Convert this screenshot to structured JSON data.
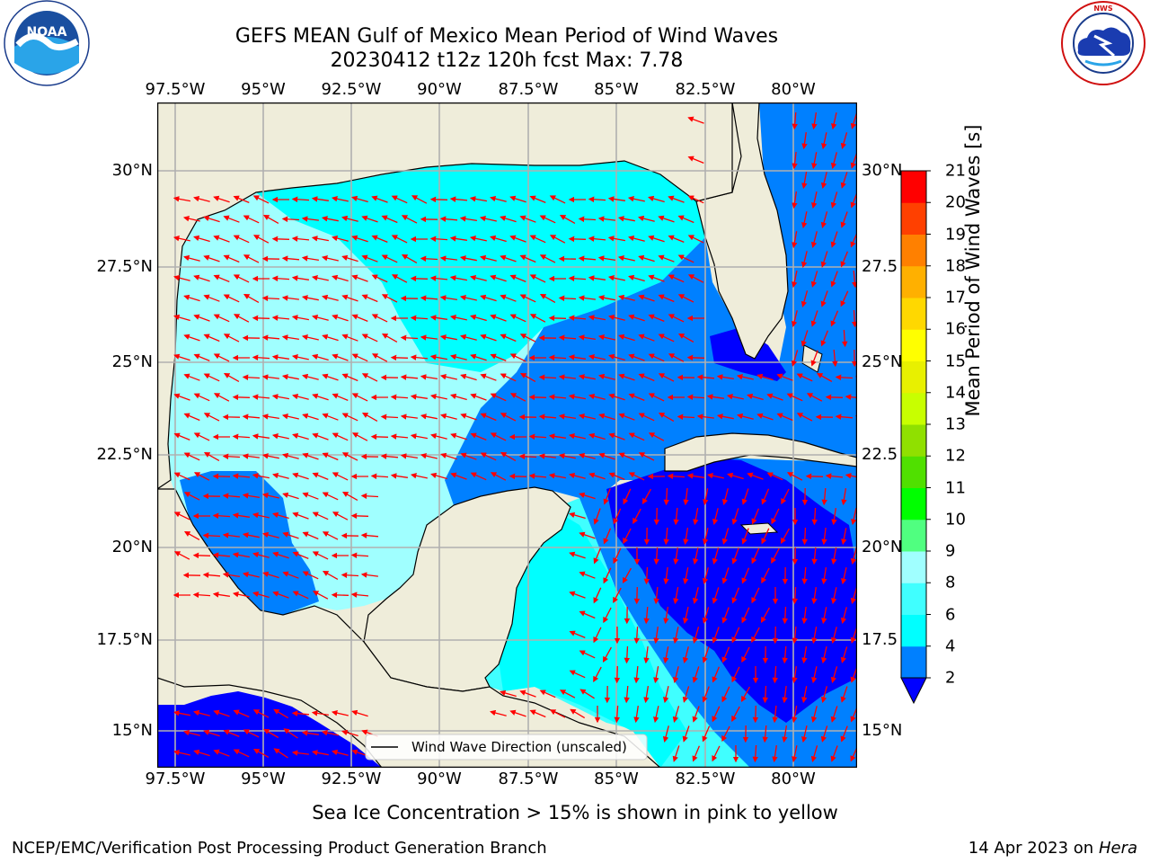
{
  "header": {
    "title_line1": "GEFS MEAN Gulf of Mexico Mean Period of Wind Waves",
    "title_line2": "20230412 t12z 120h fcst   Max: 7.78"
  },
  "logos": {
    "left": {
      "text": "NOAA",
      "ring_text": "NATIONAL OCEANIC AND ATMOSPHERIC ADMINISTRATION · U.S. DEPARTMENT OF COMMERCE"
    },
    "right": {
      "ring_text": "NATIONAL WEATHER SERVICE"
    }
  },
  "map": {
    "lon_ticks": [
      "97.5°W",
      "95°W",
      "92.5°W",
      "90°W",
      "87.5°W",
      "85°W",
      "82.5°W",
      "80°W"
    ],
    "lat_ticks_left": [
      "30°N",
      "27.5°N",
      "25°N",
      "22.5°N",
      "20°N",
      "17.5°N",
      "15°N"
    ],
    "lat_ticks_right": [
      "30°N",
      "27.5",
      "25°N",
      "22.5",
      "20°N",
      "17.5",
      "15°N"
    ],
    "legend_label": "Wind Wave Direction (unscaled)",
    "colors": {
      "land": "#efedda",
      "grid": "#b0b0b0",
      "arrow": "#ff0000",
      "coast": "#000000"
    }
  },
  "colorbar": {
    "label": "Mean Period of Wind Waves [s]",
    "ticks": [
      "2",
      "4",
      "6",
      "8",
      "9",
      "10",
      "11",
      "12",
      "13",
      "14",
      "15",
      "16",
      "17",
      "18",
      "19",
      "20",
      "21"
    ],
    "colors": [
      "#0000ff",
      "#0080ff",
      "#00ffff",
      "#40ffff",
      "#a0ffff",
      "#50ff80",
      "#00ff00",
      "#50e000",
      "#90e000",
      "#c8ff00",
      "#e8f000",
      "#ffff00",
      "#ffd800",
      "#ffb000",
      "#ff8000",
      "#ff4000",
      "#ff0000"
    ]
  },
  "chart_data": {
    "type": "heatmap",
    "title": "GEFS MEAN Gulf of Mexico Mean Period of Wind Waves",
    "subtitle": "20230412 t12z 120h fcst   Max: 7.78",
    "variable": "Mean Period of Wind Waves [s]",
    "max": 7.78,
    "xlim": [
      "98.5°W",
      "78.5°W"
    ],
    "ylim": [
      "14°N",
      "31.7°N"
    ],
    "color_levels": [
      2,
      4,
      6,
      8,
      9,
      10,
      11,
      12,
      13,
      14,
      15,
      16,
      17,
      18,
      19,
      20,
      21
    ]
  },
  "notes": {
    "sea_ice": "Sea Ice Concentration > 15% is shown in pink to yellow"
  },
  "footer": {
    "left": "NCEP/EMC/Verification Post Processing Product Generation Branch",
    "date": "14 Apr 2023 on ",
    "machine": "Hera"
  }
}
